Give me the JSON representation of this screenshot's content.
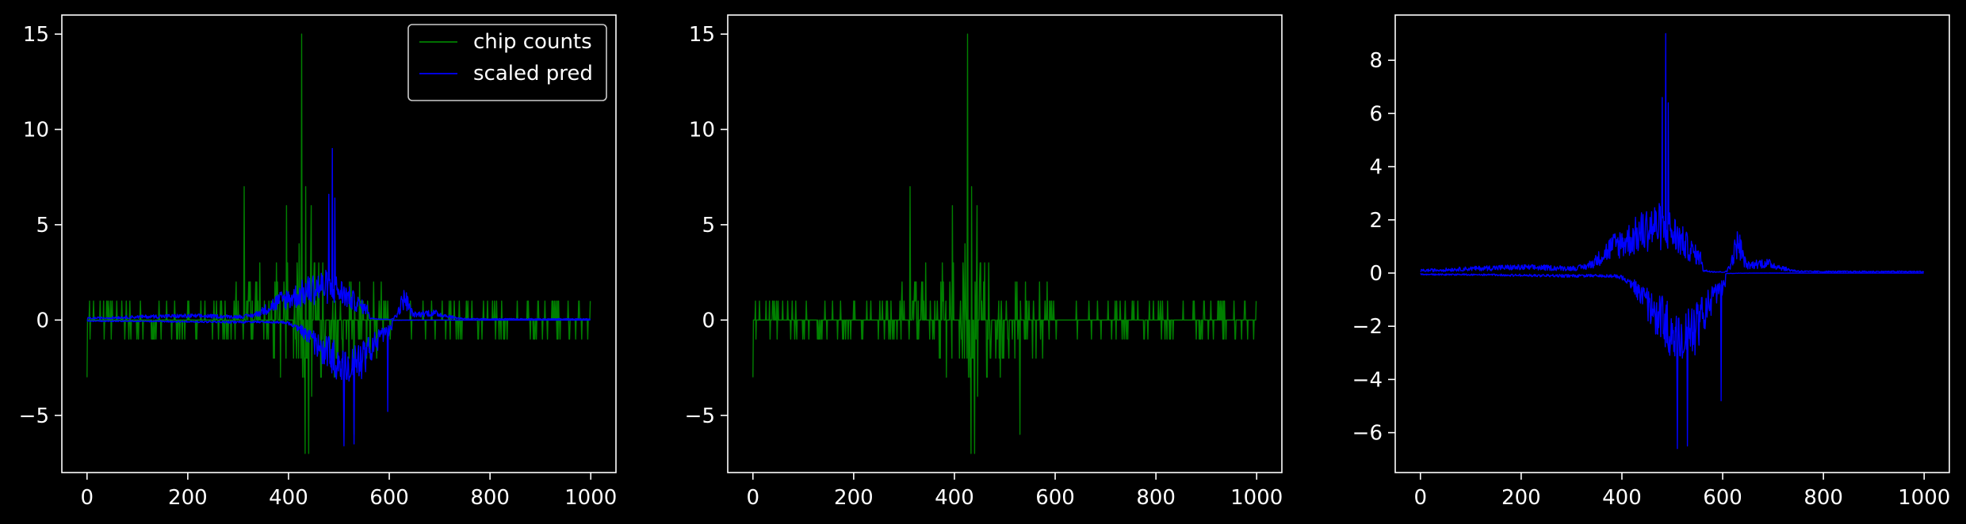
{
  "chart_data": [
    {
      "type": "line",
      "xlim": [
        -50,
        1050
      ],
      "ylim": [
        -8,
        16
      ],
      "xticks": [
        0,
        200,
        400,
        600,
        800,
        1000
      ],
      "yticks": [
        -5,
        0,
        5,
        10,
        15
      ],
      "grid": false,
      "legend": "top-right",
      "series": [
        {
          "name": "chip counts",
          "color": "#008000",
          "style": "counts"
        },
        {
          "name": "scaled pred",
          "color": "#0000ff",
          "style": "pred"
        }
      ]
    },
    {
      "type": "line",
      "xlim": [
        -50,
        1050
      ],
      "ylim": [
        -8,
        16
      ],
      "xticks": [
        0,
        200,
        400,
        600,
        800,
        1000
      ],
      "yticks": [
        -5,
        0,
        5,
        10,
        15
      ],
      "grid": false,
      "series": [
        {
          "color": "#008000",
          "style": "counts"
        }
      ]
    },
    {
      "type": "line",
      "xlim": [
        -50,
        1050
      ],
      "ylim": [
        -7.5,
        9.7
      ],
      "xticks": [
        0,
        200,
        400,
        600,
        800,
        1000
      ],
      "yticks": [
        -6,
        -4,
        -2,
        0,
        2,
        4,
        6,
        8
      ],
      "grid": false,
      "series": [
        {
          "color": "#0000ff",
          "style": "pred"
        }
      ]
    }
  ]
}
